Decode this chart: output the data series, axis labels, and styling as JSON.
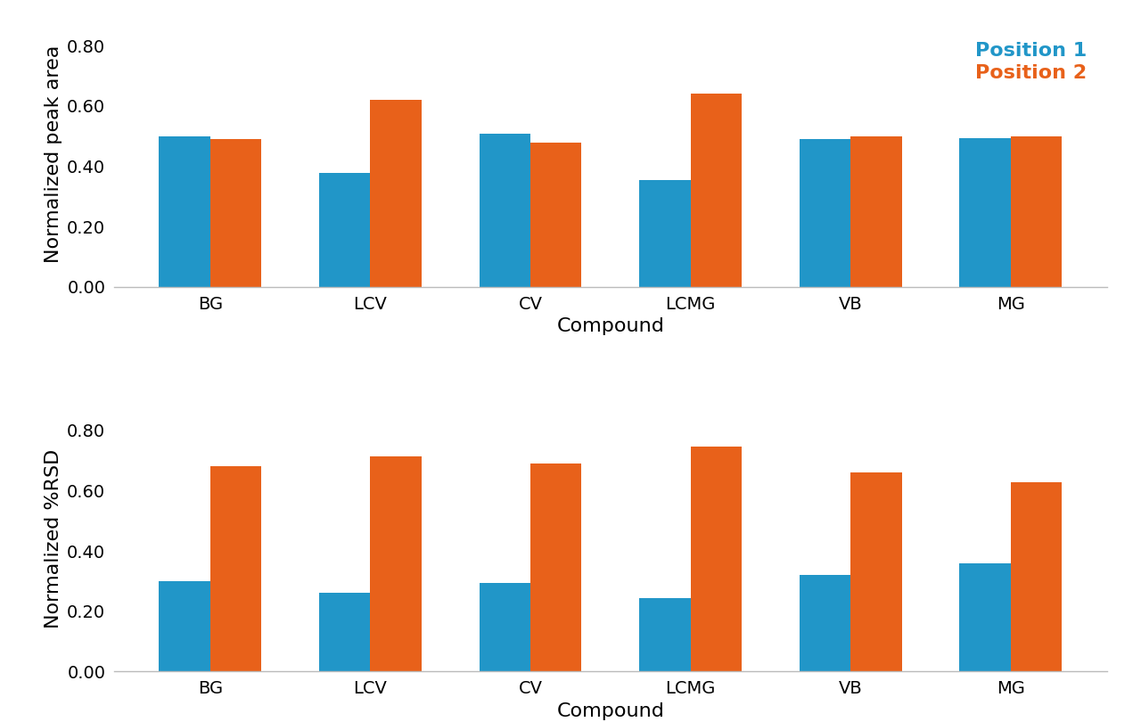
{
  "categories": [
    "BG",
    "LCV",
    "CV",
    "LCMG",
    "VB",
    "MG"
  ],
  "top_chart": {
    "ylabel": "Normalized peak area",
    "pos1_values": [
      0.5,
      0.378,
      0.508,
      0.355,
      0.49,
      0.492
    ],
    "pos2_values": [
      0.49,
      0.62,
      0.48,
      0.64,
      0.498,
      0.498
    ],
    "ylim": [
      0.0,
      0.88
    ],
    "yticks": [
      0.0,
      0.2,
      0.4,
      0.6,
      0.8
    ]
  },
  "bottom_chart": {
    "ylabel": "Normalized %RSD",
    "pos1_values": [
      0.3,
      0.262,
      0.293,
      0.243,
      0.32,
      0.358
    ],
    "pos2_values": [
      0.68,
      0.715,
      0.69,
      0.745,
      0.66,
      0.628
    ],
    "ylim": [
      0.0,
      0.88
    ],
    "yticks": [
      0.0,
      0.2,
      0.4,
      0.6,
      0.8
    ]
  },
  "xlabel": "Compound",
  "color_pos1": "#2196C8",
  "color_pos2": "#E8611A",
  "legend_labels": [
    "Position 1",
    "Position 2"
  ],
  "bar_width": 0.32,
  "background_color": "#ffffff",
  "tick_fontsize": 14,
  "label_fontsize": 16,
  "legend_fontsize": 16,
  "spine_color": "#bbbbbb"
}
